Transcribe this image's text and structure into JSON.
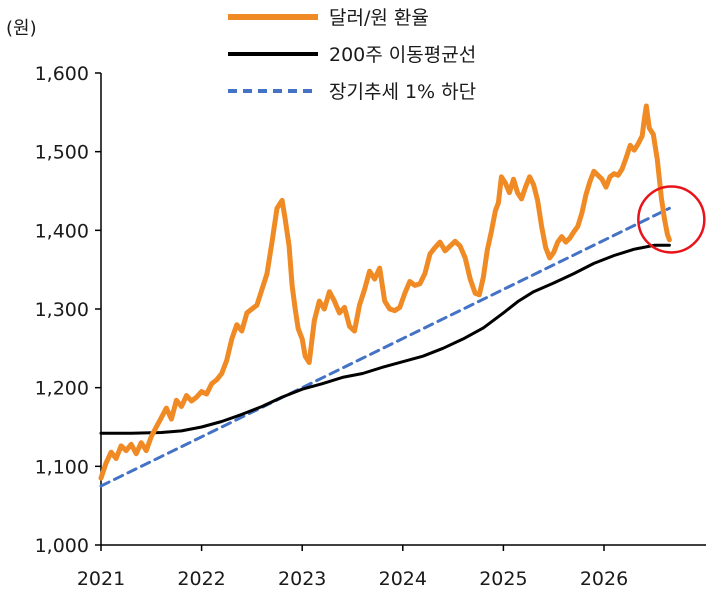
{
  "chart_data": {
    "type": "line",
    "unit_label": "(원)",
    "y_ticks": [
      "1,000",
      "1,100",
      "1,200",
      "1,300",
      "1,400",
      "1,500",
      "1,600"
    ],
    "x_ticks": [
      "2021",
      "2022",
      "2023",
      "2024",
      "2025",
      "2026"
    ],
    "ylim": [
      1000,
      1600
    ],
    "xlim": [
      2021.0,
      2026.7
    ],
    "grid": false,
    "legend_position": "top-right",
    "highlight": {
      "x": 2026.55,
      "y": 1410,
      "color": "#e8141a"
    },
    "series": [
      {
        "name": "달러/원 환율",
        "color": "#f08a24",
        "style": "solid",
        "points": [
          [
            2021.0,
            1085
          ],
          [
            2021.05,
            1104
          ],
          [
            2021.1,
            1118
          ],
          [
            2021.15,
            1110
          ],
          [
            2021.2,
            1126
          ],
          [
            2021.25,
            1120
          ],
          [
            2021.3,
            1128
          ],
          [
            2021.35,
            1116
          ],
          [
            2021.4,
            1130
          ],
          [
            2021.45,
            1120
          ],
          [
            2021.5,
            1138
          ],
          [
            2021.55,
            1150
          ],
          [
            2021.6,
            1162
          ],
          [
            2021.65,
            1174
          ],
          [
            2021.7,
            1160
          ],
          [
            2021.75,
            1184
          ],
          [
            2021.8,
            1176
          ],
          [
            2021.85,
            1190
          ],
          [
            2021.9,
            1183
          ],
          [
            2021.95,
            1188
          ],
          [
            2022.0,
            1195
          ],
          [
            2022.05,
            1192
          ],
          [
            2022.1,
            1205
          ],
          [
            2022.15,
            1210
          ],
          [
            2022.2,
            1218
          ],
          [
            2022.25,
            1235
          ],
          [
            2022.3,
            1262
          ],
          [
            2022.35,
            1280
          ],
          [
            2022.4,
            1272
          ],
          [
            2022.45,
            1295
          ],
          [
            2022.5,
            1300
          ],
          [
            2022.55,
            1305
          ],
          [
            2022.6,
            1325
          ],
          [
            2022.65,
            1345
          ],
          [
            2022.7,
            1385
          ],
          [
            2022.75,
            1428
          ],
          [
            2022.8,
            1438
          ],
          [
            2022.83,
            1415
          ],
          [
            2022.87,
            1380
          ],
          [
            2022.9,
            1330
          ],
          [
            2022.93,
            1300
          ],
          [
            2022.96,
            1275
          ],
          [
            2023.0,
            1262
          ],
          [
            2023.03,
            1240
          ],
          [
            2023.07,
            1232
          ],
          [
            2023.12,
            1285
          ],
          [
            2023.17,
            1310
          ],
          [
            2023.22,
            1300
          ],
          [
            2023.27,
            1322
          ],
          [
            2023.32,
            1310
          ],
          [
            2023.37,
            1295
          ],
          [
            2023.42,
            1302
          ],
          [
            2023.47,
            1278
          ],
          [
            2023.52,
            1272
          ],
          [
            2023.57,
            1305
          ],
          [
            2023.62,
            1325
          ],
          [
            2023.67,
            1348
          ],
          [
            2023.72,
            1338
          ],
          [
            2023.77,
            1352
          ],
          [
            2023.82,
            1310
          ],
          [
            2023.87,
            1300
          ],
          [
            2023.92,
            1298
          ],
          [
            2023.97,
            1302
          ],
          [
            2024.02,
            1320
          ],
          [
            2024.07,
            1335
          ],
          [
            2024.12,
            1330
          ],
          [
            2024.17,
            1332
          ],
          [
            2024.22,
            1345
          ],
          [
            2024.27,
            1370
          ],
          [
            2024.32,
            1378
          ],
          [
            2024.37,
            1385
          ],
          [
            2024.42,
            1374
          ],
          [
            2024.47,
            1380
          ],
          [
            2024.52,
            1386
          ],
          [
            2024.57,
            1380
          ],
          [
            2024.62,
            1365
          ],
          [
            2024.67,
            1338
          ],
          [
            2024.72,
            1320
          ],
          [
            2024.76,
            1318
          ],
          [
            2024.8,
            1340
          ],
          [
            2024.84,
            1375
          ],
          [
            2024.88,
            1398
          ],
          [
            2024.92,
            1425
          ],
          [
            2024.95,
            1435
          ],
          [
            2024.98,
            1468
          ],
          [
            2025.02,
            1460
          ],
          [
            2025.06,
            1448
          ],
          [
            2025.1,
            1465
          ],
          [
            2025.14,
            1448
          ],
          [
            2025.18,
            1440
          ],
          [
            2025.22,
            1455
          ],
          [
            2025.26,
            1468
          ],
          [
            2025.3,
            1458
          ],
          [
            2025.34,
            1438
          ],
          [
            2025.38,
            1405
          ],
          [
            2025.42,
            1378
          ],
          [
            2025.46,
            1365
          ],
          [
            2025.5,
            1372
          ],
          [
            2025.54,
            1385
          ],
          [
            2025.58,
            1392
          ],
          [
            2025.62,
            1385
          ],
          [
            2025.66,
            1390
          ],
          [
            2025.7,
            1398
          ],
          [
            2025.74,
            1405
          ],
          [
            2025.78,
            1422
          ],
          [
            2025.82,
            1445
          ],
          [
            2025.86,
            1462
          ],
          [
            2025.9,
            1475
          ],
          [
            2025.94,
            1470
          ],
          [
            2025.98,
            1465
          ],
          [
            2026.02,
            1455
          ],
          [
            2026.06,
            1468
          ],
          [
            2026.1,
            1472
          ],
          [
            2026.14,
            1470
          ],
          [
            2026.18,
            1478
          ],
          [
            2026.22,
            1492
          ],
          [
            2026.26,
            1508
          ],
          [
            2026.3,
            1502
          ],
          [
            2026.34,
            1510
          ],
          [
            2026.38,
            1520
          ],
          [
            2026.4,
            1540
          ],
          [
            2026.42,
            1558
          ],
          [
            2026.45,
            1530
          ],
          [
            2026.49,
            1522
          ],
          [
            2026.53,
            1490
          ],
          [
            2026.57,
            1442
          ],
          [
            2026.6,
            1415
          ],
          [
            2026.63,
            1395
          ],
          [
            2026.65,
            1388
          ]
        ]
      },
      {
        "name": "200주 이동평균선",
        "color": "#000000",
        "style": "solid",
        "points": [
          [
            2021.0,
            1142
          ],
          [
            2021.3,
            1142
          ],
          [
            2021.6,
            1143
          ],
          [
            2021.8,
            1145
          ],
          [
            2022.0,
            1150
          ],
          [
            2022.2,
            1157
          ],
          [
            2022.4,
            1166
          ],
          [
            2022.6,
            1176
          ],
          [
            2022.8,
            1188
          ],
          [
            2023.0,
            1198
          ],
          [
            2023.2,
            1205
          ],
          [
            2023.4,
            1213
          ],
          [
            2023.6,
            1218
          ],
          [
            2023.8,
            1226
          ],
          [
            2024.0,
            1233
          ],
          [
            2024.2,
            1240
          ],
          [
            2024.4,
            1250
          ],
          [
            2024.6,
            1262
          ],
          [
            2024.8,
            1276
          ],
          [
            2025.0,
            1295
          ],
          [
            2025.15,
            1310
          ],
          [
            2025.3,
            1322
          ],
          [
            2025.5,
            1333
          ],
          [
            2025.7,
            1345
          ],
          [
            2025.9,
            1358
          ],
          [
            2026.1,
            1368
          ],
          [
            2026.3,
            1376
          ],
          [
            2026.5,
            1381
          ],
          [
            2026.65,
            1381
          ]
        ]
      },
      {
        "name": "장기추세 1% 하단",
        "color": "#4472c4",
        "style": "dashed",
        "points": [
          [
            2021.0,
            1075
          ],
          [
            2026.65,
            1428
          ]
        ]
      }
    ]
  }
}
